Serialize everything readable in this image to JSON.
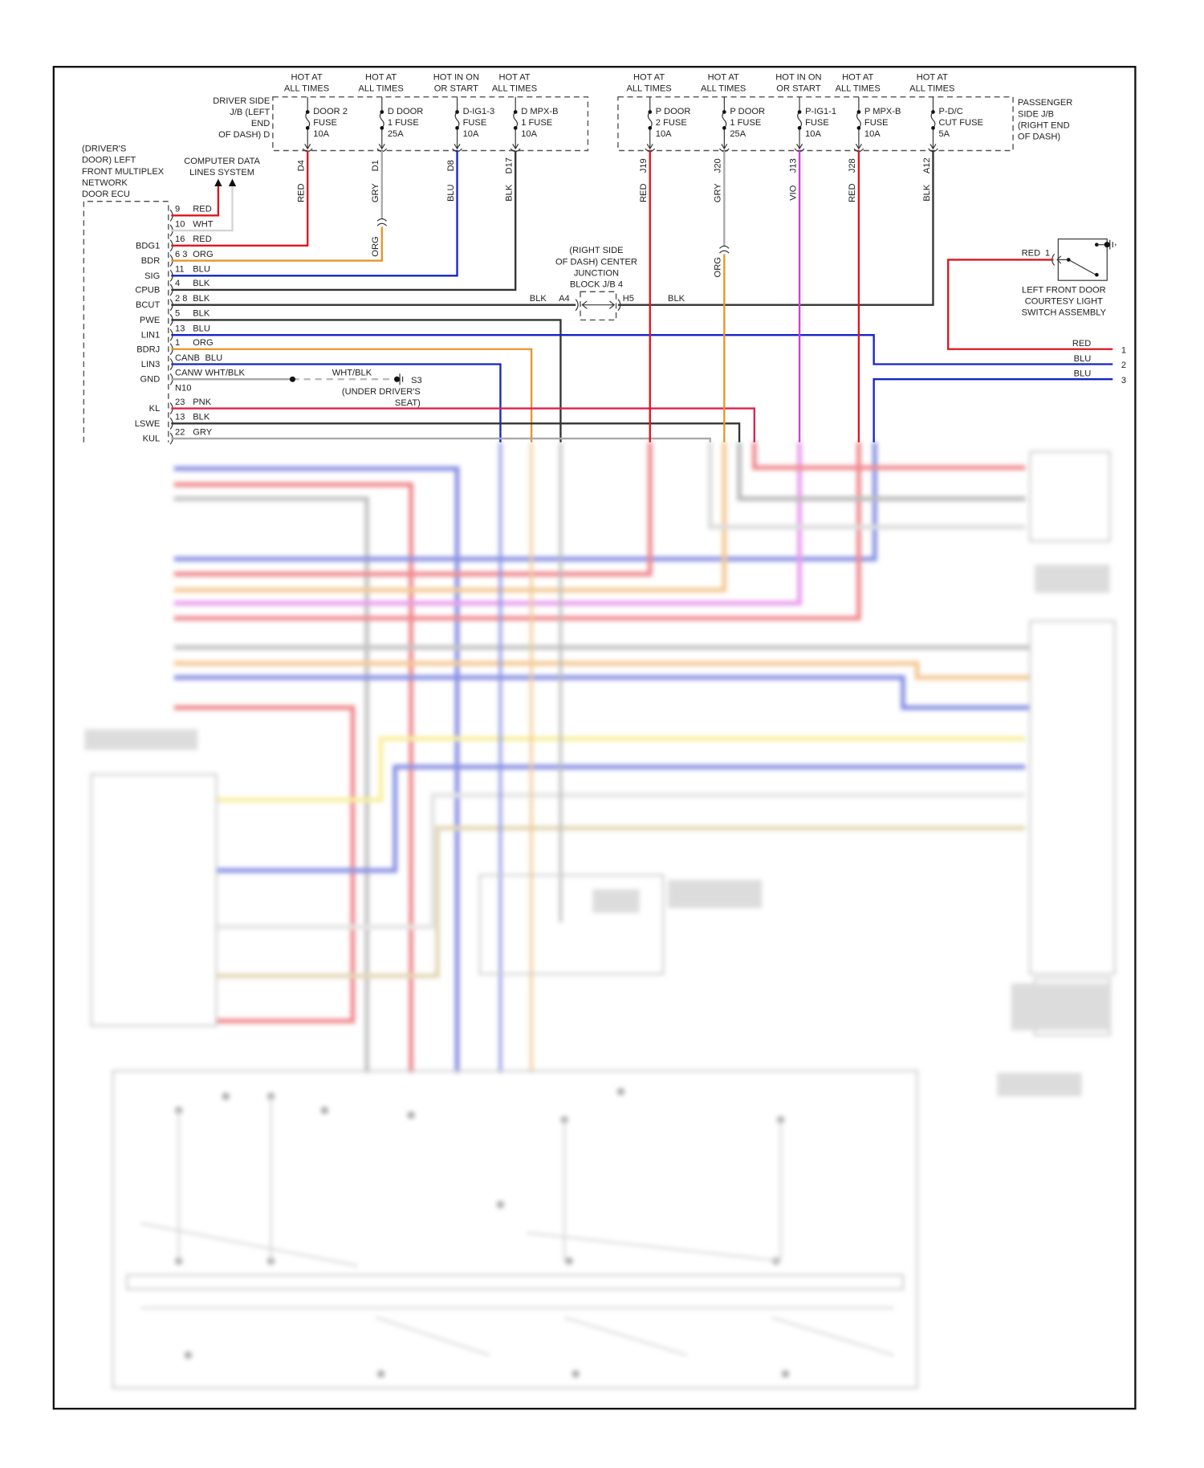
{
  "colors": {
    "RED": "#e0141e",
    "GRY": "#a9a9a9",
    "BLU": "#1424c8",
    "BLK": "#333333",
    "ORG": "#e8942a",
    "VIO": "#d23cd8",
    "PNK": "#e2204e",
    "WHT": "#d4d4d4",
    "frame": "#111111"
  },
  "driver_jb": {
    "label_lines": [
      "DRIVER SIDE",
      "J/B (LEFT",
      "END",
      "OF DASH) D"
    ],
    "fuses": [
      {
        "hot": [
          "HOT AT",
          "ALL TIMES"
        ],
        "name": [
          "DOOR 2",
          "FUSE",
          "10A"
        ],
        "terminal": "D4",
        "wire": "RED"
      },
      {
        "hot": [
          "HOT AT",
          "ALL TIMES"
        ],
        "name": [
          "D DOOR",
          "1 FUSE",
          "25A"
        ],
        "terminal": "D1",
        "wire": "GRY"
      },
      {
        "hot": [
          "HOT IN ON",
          "OR START"
        ],
        "name": [
          "D-IG1-3",
          "FUSE",
          "10A"
        ],
        "terminal": "D8",
        "wire": "BLU"
      },
      {
        "hot": [
          "HOT AT",
          "ALL TIMES"
        ],
        "name": [
          "D MPX-B",
          "1 FUSE",
          "10A"
        ],
        "terminal": "D17",
        "wire": "BLK"
      }
    ]
  },
  "passenger_jb": {
    "label_lines": [
      "PASSENGER",
      "SIDE J/B",
      "(RIGHT END",
      "OF DASH)"
    ],
    "fuses": [
      {
        "hot": [
          "HOT AT",
          "ALL TIMES"
        ],
        "name": [
          "P DOOR",
          "2 FUSE",
          "10A"
        ],
        "terminal": "J19",
        "wire": "RED"
      },
      {
        "hot": [
          "HOT AT",
          "ALL TIMES"
        ],
        "name": [
          "P DOOR",
          "1 FUSE",
          "25A"
        ],
        "terminal": "J20",
        "wire": "GRY"
      },
      {
        "hot": [
          "HOT IN ON",
          "OR START"
        ],
        "name": [
          "P-IG1-1",
          "FUSE",
          "10A"
        ],
        "terminal": "J13",
        "wire": "VIO"
      },
      {
        "hot": [
          "HOT AT",
          "ALL TIMES"
        ],
        "name": [
          "P MPX-B",
          "FUSE",
          "10A"
        ],
        "terminal": "J28",
        "wire": "RED"
      },
      {
        "hot": [
          "HOT AT",
          "ALL TIMES"
        ],
        "name": [
          "P-D/C",
          "CUT FUSE",
          "5A"
        ],
        "terminal": "A12",
        "wire": "BLK"
      }
    ]
  },
  "splice_labels": {
    "d1_lower": "ORG",
    "j20_lower": "ORG"
  },
  "ecu": {
    "label_lines": [
      "(DRIVER'S",
      "DOOR) LEFT",
      "FRONT MULTIPLEX",
      "NETWORK",
      "DOOR ECU"
    ],
    "pins": [
      {
        "signal": "",
        "pin": "9",
        "wire": "RED"
      },
      {
        "signal": "",
        "pin": "10",
        "wire": "WHT"
      },
      {
        "signal": "BDG1",
        "pin": "16",
        "wire": "RED"
      },
      {
        "signal": "BDR",
        "pin": "6 3",
        "wire": "ORG"
      },
      {
        "signal": "SIG",
        "pin": "11",
        "wire": "BLU"
      },
      {
        "signal": "CPUB",
        "pin": "4",
        "wire": "BLK"
      },
      {
        "signal": "BCUT",
        "pin": "2 8",
        "wire": "BLK"
      },
      {
        "signal": "PWE",
        "pin": "5",
        "wire": "BLK"
      },
      {
        "signal": "LIN1",
        "pin": "13",
        "wire": "BLU"
      },
      {
        "signal": "BDRJ",
        "pin": "1",
        "wire": "ORG"
      },
      {
        "signal": "LIN3",
        "pin": "CANB",
        "wire": "BLU"
      },
      {
        "signal": "GND",
        "pin": "CANW",
        "wire": "WHT/BLK"
      },
      {
        "signal": "",
        "pin": "N10",
        "wire": ""
      },
      {
        "signal": "KL",
        "pin": "23",
        "wire": "PNK"
      },
      {
        "signal": "LSWE",
        "pin": "13",
        "wire": "BLK"
      },
      {
        "signal": "KUL",
        "pin": "22",
        "wire": "GRY"
      }
    ]
  },
  "computer_data": {
    "label_lines": [
      "COMPUTER DATA",
      "LINES SYSTEM"
    ]
  },
  "jb4": {
    "label_lines": [
      "(RIGHT SIDE",
      "OF DASH) CENTER",
      "JUNCTION",
      "BLOCK J/B 4"
    ],
    "left_terminal": "A4",
    "right_terminal": "H5",
    "wire_left": "BLK",
    "wire_right": "BLK"
  },
  "ground": {
    "wire": "WHT/BLK",
    "id": "S3",
    "location_lines": [
      "(UNDER DRIVER'S",
      "SEAT)"
    ]
  },
  "courtesy_switch": {
    "label_lines": [
      "LEFT FRONT DOOR",
      "COURTESY LIGHT",
      "SWITCH ASSEMBLY"
    ],
    "pin": "1",
    "wire": "RED"
  },
  "right_connector": [
    {
      "wire": "RED",
      "pin": "1"
    },
    {
      "wire": "BLU",
      "pin": "2"
    },
    {
      "wire": "BLU",
      "pin": "3"
    }
  ]
}
